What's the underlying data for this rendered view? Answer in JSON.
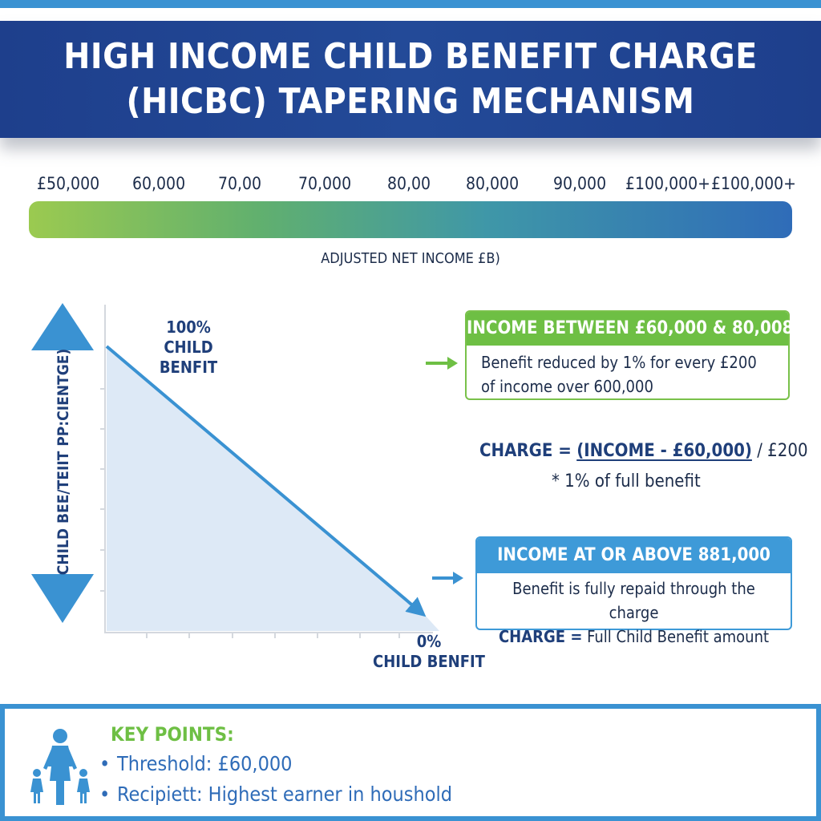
{
  "header": {
    "title_line1": "HIGH INCOME CHILD BENEFIT CHARGE",
    "title_line2": "(HICBC) TAPERING MECHANISM"
  },
  "income_scale": {
    "labels": [
      "£50,000",
      "60,000",
      "70,00",
      "70,000",
      "80,00",
      "80,000",
      "90,000",
      "£100,000+",
      "£100,000+"
    ],
    "caption": "ADJUSTED NET INCOME £B)",
    "gradient_colors": [
      "#9bca50",
      "#61b06e",
      "#3f97a8",
      "#2f6cb8"
    ]
  },
  "taper_graph": {
    "y_axis_title": "CHILD BEE/TEIIT PP:CIENTGE)",
    "start_label": [
      "100%",
      "CHILD BENFIT"
    ],
    "end_label": [
      "0%",
      "CHILD BENFIT"
    ],
    "line_color": "#3a92d2",
    "fill_color": "#dde9f6"
  },
  "band_box": {
    "title": "INCOME BETWEEN £60,000 & 80,008",
    "text": "Benefit reduced by 1% for every £200 of income over 600,000",
    "color": "#6ebf44"
  },
  "formula": {
    "charge_word": "CHARGE =",
    "numerator": "(INCOME - £60,000)",
    "divisor": "/ £200",
    "line2": "* 1% of full benefit"
  },
  "full_box": {
    "title": "INCOME AT OR ABOVE 881,000",
    "line1": "Benefit is fully repaid through the charge",
    "line2_bold": "CHARGE =",
    "line2_rest": "Full Child Benefit amount",
    "color": "#3e9ad8"
  },
  "key_points": {
    "title": "KEY POINTS:",
    "items": [
      "Threshold: £60,000",
      "Recipiett: Highest earner in houshold"
    ],
    "icon": "family-icon"
  }
}
